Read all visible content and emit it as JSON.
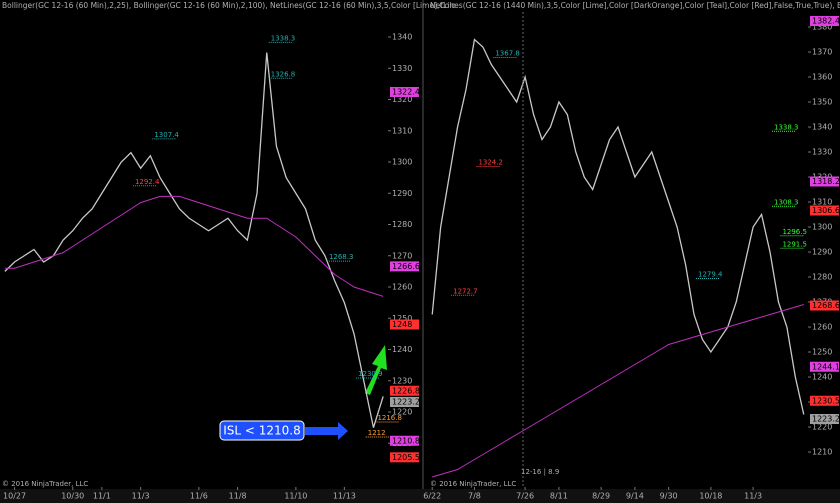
{
  "chart_data": [
    {
      "type": "line",
      "header": "Bollinger(GC 12-16 (60 Min),2,25), Bollinger(GC 12-16 (60 Min),2,100), NetLines(GC 12-16 (60 Min),3,5,Color [Lime],Colo",
      "categories": [
        null,
        "10/27",
        null,
        null,
        null,
        null,
        null,
        "10/30",
        null,
        null,
        "11/1",
        null,
        null,
        null,
        "11/3",
        null,
        null,
        null,
        null,
        null,
        "11/6",
        null,
        null,
        null,
        "11/8",
        null,
        null,
        null,
        null,
        null,
        "11/10",
        null,
        null,
        null,
        null,
        "11/13",
        null,
        null,
        null,
        null
      ],
      "series": [
        {
          "color": "#c8c8c8",
          "values": [
            1265,
            1268,
            1270,
            1272,
            1268,
            1270,
            1275,
            1278,
            1282,
            1285,
            1290,
            1295,
            1300,
            1303,
            1298,
            1302,
            1295,
            1290,
            1285,
            1282,
            1280,
            1278,
            1280,
            1282,
            1278,
            1275,
            1290,
            1335,
            1305,
            1295,
            1290,
            1285,
            1275,
            1270,
            1262,
            1255,
            1245,
            1230,
            1215,
            1225
          ]
        },
        {
          "color": "#c030c0",
          "values": [
            1266,
            1266,
            1267,
            1268,
            1269,
            1270,
            1271,
            1273,
            1275,
            1277,
            1279,
            1281,
            1283,
            1285,
            1287,
            1288,
            1289,
            1289,
            1289,
            1288,
            1287,
            1286,
            1285,
            1284,
            1283,
            1282,
            1282,
            1282,
            1280,
            1278,
            1276,
            1273,
            1270,
            1267,
            1264,
            1262,
            1260,
            1259,
            1258,
            1257
          ]
        }
      ],
      "ylim": [
        1196,
        1348
      ],
      "yticks": [
        1210,
        1220,
        1230,
        1240,
        1250,
        1260,
        1270,
        1280,
        1290,
        1300,
        1310,
        1320,
        1330,
        1340
      ],
      "price_markers": [
        {
          "value": 1322.4,
          "color": "#e040e0"
        },
        {
          "value": 1266.6,
          "color": "#e040e0"
        },
        {
          "value": 1248.0,
          "color": "#ff3030"
        },
        {
          "value": 1226.8,
          "color": "#ff3030"
        },
        {
          "value": 1223.2,
          "color": "#a0a0a0"
        },
        {
          "value": 1210.8,
          "color": "#e040e0"
        },
        {
          "value": 1205.5,
          "color": "#ff3030"
        }
      ],
      "level_labels": [
        {
          "value": 1338.3,
          "index": 27,
          "color": "#20b0b0"
        },
        {
          "value": 1326.8,
          "index": 27,
          "color": "#20b0b0"
        },
        {
          "value": 1307.4,
          "index": 15,
          "color": "#20b0b0"
        },
        {
          "value": 1292.4,
          "index": 13,
          "color": "#ff4040"
        },
        {
          "value": 1268.3,
          "index": 33,
          "color": "#20b0b0"
        },
        {
          "value": 1230.9,
          "index": 36,
          "color": "#20b0b0"
        },
        {
          "value": 1216.8,
          "index": 38,
          "color": "#ffa030"
        },
        {
          "value": 1212,
          "index": 37,
          "color": "#ffa030"
        }
      ],
      "annotation": "ISL < 1210.8",
      "copyright": "© 2016 NinjaTrader, LLC"
    },
    {
      "type": "line",
      "header": "NetLines(GC 12-16 (1440 Min),3,5,Color [Lime],Color [DarkOrange],Color [Teal],Color [Red],False,True,True), Bollin",
      "categories": [
        "6/22",
        null,
        null,
        null,
        null,
        "7/8",
        null,
        null,
        null,
        null,
        null,
        "7/26",
        null,
        null,
        null,
        "8/11",
        null,
        null,
        null,
        null,
        "8/29",
        null,
        null,
        null,
        "9/14",
        null,
        null,
        null,
        "9/30",
        null,
        null,
        null,
        null,
        "10/18",
        null,
        null,
        null,
        null,
        "11/3",
        null,
        null,
        null,
        null,
        null,
        null
      ],
      "series": [
        {
          "color": "#c8c8c8",
          "values": [
            1265,
            1300,
            1320,
            1340,
            1355,
            1375,
            1372,
            1365,
            1360,
            1355,
            1350,
            1360,
            1345,
            1335,
            1340,
            1350,
            1345,
            1330,
            1320,
            1315,
            1325,
            1335,
            1340,
            1330,
            1320,
            1325,
            1330,
            1320,
            1310,
            1300,
            1285,
            1265,
            1255,
            1250,
            1255,
            1260,
            1270,
            1285,
            1300,
            1305,
            1290,
            1270,
            1260,
            1240,
            1225
          ]
        },
        {
          "color": "#c030c0",
          "values": [
            1200,
            1201,
            1202,
            1203,
            1205,
            1207,
            1209,
            1211,
            1213,
            1215,
            1217,
            1219,
            1221,
            1223,
            1225,
            1227,
            1229,
            1231,
            1233,
            1235,
            1237,
            1239,
            1241,
            1243,
            1245,
            1247,
            1249,
            1251,
            1253,
            1254,
            1255,
            1256,
            1257,
            1258,
            1259,
            1260,
            1261,
            1262,
            1263,
            1264,
            1265,
            1266,
            1267,
            1268,
            1269
          ]
        }
      ],
      "ylim": [
        1196,
        1386
      ],
      "yticks": [
        1210,
        1220,
        1230,
        1240,
        1250,
        1260,
        1270,
        1280,
        1290,
        1300,
        1310,
        1320,
        1330,
        1340,
        1350,
        1360,
        1370,
        1380
      ],
      "price_markers": [
        {
          "value": 1382.4,
          "color": "#e040e0"
        },
        {
          "value": 1318.2,
          "color": "#e040e0"
        },
        {
          "value": 1306.6,
          "color": "#ff3030"
        },
        {
          "value": 1268.6,
          "color": "#ff3030"
        },
        {
          "value": 1244.1,
          "color": "#e040e0"
        },
        {
          "value": 1230.5,
          "color": "#ff3030"
        },
        {
          "value": 1223.2,
          "color": "#a0a0a0"
        }
      ],
      "level_labels": [
        {
          "value": 1367.8,
          "index": 7,
          "color": "#20b0b0"
        },
        {
          "value": 1324.2,
          "index": 5,
          "color": "#ff4040"
        },
        {
          "value": 1338.3,
          "index": 40,
          "color": "#30ff30"
        },
        {
          "value": 1308.3,
          "index": 40,
          "color": "#30ff30"
        },
        {
          "value": 1296.5,
          "index": 41,
          "color": "#30ff30"
        },
        {
          "value": 1291.5,
          "index": 41,
          "color": "#30ff30"
        },
        {
          "value": 1279.4,
          "index": 31,
          "color": "#20b0b0"
        },
        {
          "value": 1272.7,
          "index": 2,
          "color": "#ff4040"
        }
      ],
      "footer_note": "12-16 | 8.9",
      "copyright": "© 2016 NinjaTrader, LLC"
    }
  ]
}
